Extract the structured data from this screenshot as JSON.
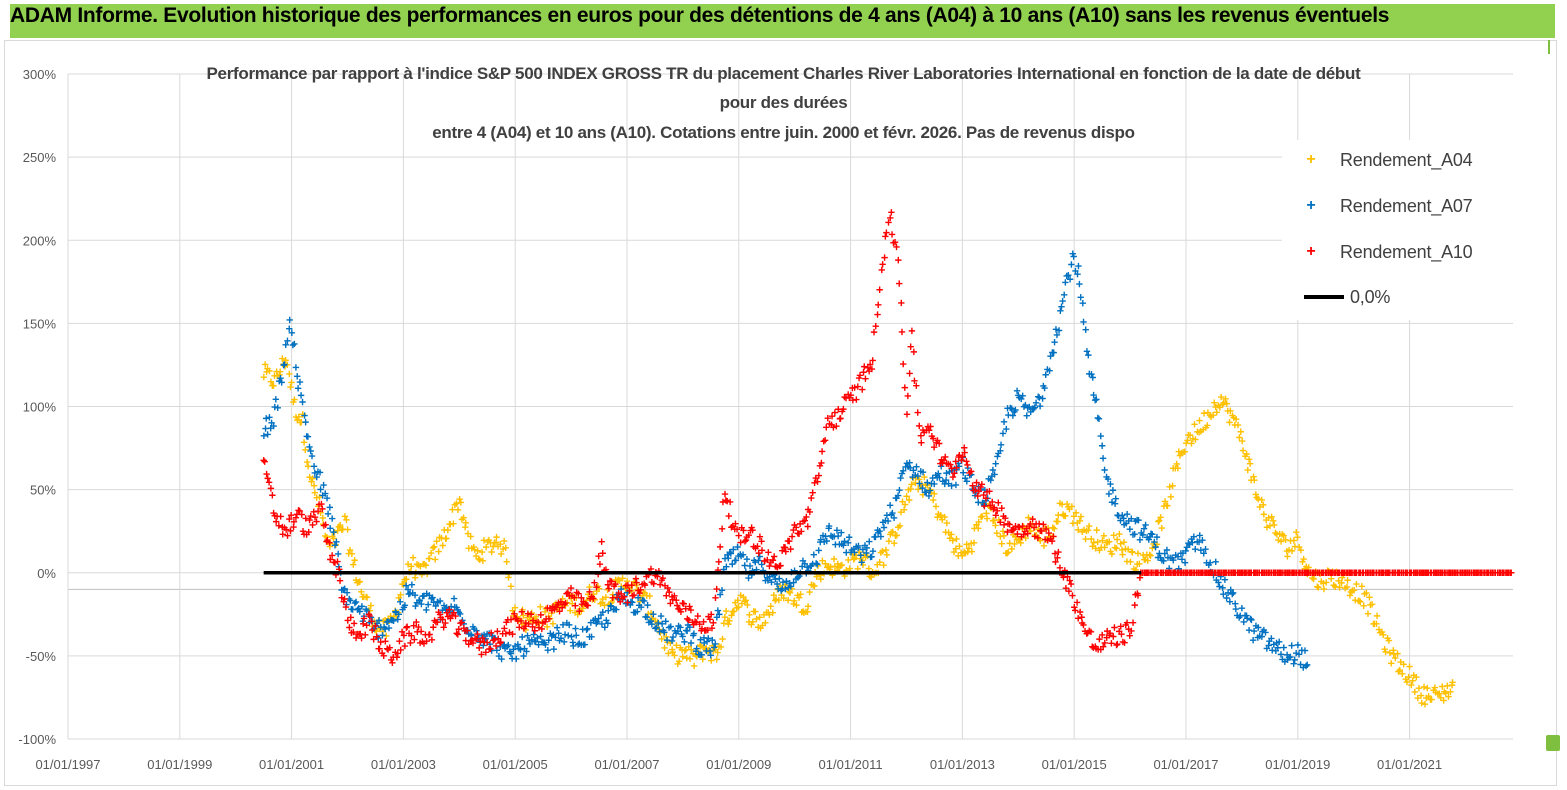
{
  "banner": {
    "text": "ADAM Informe. Evolution historique des performances en euros pour des détentions de 4 ans (A04) à 10 ans (A10) sans les revenus éventuels"
  },
  "chart_data": {
    "type": "scatter",
    "title_lines": [
      "Performance par rapport à l'indice S&P 500 INDEX GROSS TR  du placement Charles River Laboratories International en fonction de la date de début",
      "pour des durées",
      "entre 4 (A04) et 10 ans (A10). Cotations entre juin. 2000 et févr. 2026. Pas de revenus dispo"
    ],
    "x_tick_labels": [
      "01/01/1997",
      "01/01/1999",
      "01/01/2001",
      "01/01/2003",
      "01/01/2005",
      "01/01/2007",
      "01/01/2009",
      "01/01/2011",
      "01/01/2013",
      "01/01/2015",
      "01/01/2017",
      "01/01/2019",
      "01/01/2021"
    ],
    "x_range": [
      1997.0,
      2022.85
    ],
    "y_tick_labels": [
      "300%",
      "250%",
      "200%",
      "150%",
      "100%",
      "50%",
      "0%",
      "-50%",
      "-100%"
    ],
    "y_range": [
      -1.0,
      3.0
    ],
    "y_gridlines": true,
    "legend_position": "top-right",
    "series": [
      {
        "name": "Rendement_A04",
        "color": "#ffc000",
        "marker": "+",
        "anchors": [
          [
            2000.5,
            1.2
          ],
          [
            2000.7,
            1.15
          ],
          [
            2000.9,
            1.3
          ],
          [
            2001.05,
            1.0
          ],
          [
            2001.2,
            0.9
          ],
          [
            2001.35,
            0.55
          ],
          [
            2001.5,
            0.4
          ],
          [
            2001.65,
            0.15
          ],
          [
            2001.8,
            0.2
          ],
          [
            2001.95,
            0.3
          ],
          [
            2002.1,
            0.05
          ],
          [
            2002.3,
            -0.15
          ],
          [
            2002.5,
            -0.3
          ],
          [
            2002.7,
            -0.35
          ],
          [
            2002.85,
            -0.25
          ],
          [
            2003.0,
            -0.05
          ],
          [
            2003.15,
            0.05
          ],
          [
            2003.3,
            -0.02
          ],
          [
            2003.5,
            0.08
          ],
          [
            2003.7,
            0.2
          ],
          [
            2003.9,
            0.35
          ],
          [
            2004.0,
            0.45
          ],
          [
            2004.15,
            0.2
          ],
          [
            2004.3,
            0.1
          ],
          [
            2004.5,
            0.15
          ],
          [
            2004.7,
            0.2
          ],
          [
            2004.85,
            0.1
          ],
          [
            2004.95,
            -0.2
          ],
          [
            2005.2,
            -0.3
          ],
          [
            2005.4,
            -0.25
          ],
          [
            2005.6,
            -0.28
          ],
          [
            2005.8,
            -0.2
          ],
          [
            2006.0,
            -0.18
          ],
          [
            2006.2,
            -0.2
          ],
          [
            2006.4,
            -0.1
          ],
          [
            2006.6,
            -0.15
          ],
          [
            2006.8,
            -0.1
          ],
          [
            2007.0,
            -0.05
          ],
          [
            2007.2,
            -0.12
          ],
          [
            2007.4,
            -0.2
          ],
          [
            2007.6,
            -0.35
          ],
          [
            2007.8,
            -0.5
          ],
          [
            2008.0,
            -0.48
          ],
          [
            2008.2,
            -0.52
          ],
          [
            2008.4,
            -0.45
          ],
          [
            2008.6,
            -0.5
          ],
          [
            2008.75,
            -0.3
          ],
          [
            2009.0,
            -0.15
          ],
          [
            2009.2,
            -0.25
          ],
          [
            2009.4,
            -0.3
          ],
          [
            2009.6,
            -0.2
          ],
          [
            2009.8,
            -0.1
          ],
          [
            2010.0,
            -0.15
          ],
          [
            2010.2,
            -0.2
          ],
          [
            2010.4,
            0.0
          ],
          [
            2010.6,
            0.05
          ],
          [
            2010.8,
            0.02
          ],
          [
            2011.0,
            0.05
          ],
          [
            2011.2,
            0.1
          ],
          [
            2011.4,
            0.0
          ],
          [
            2011.6,
            0.1
          ],
          [
            2011.8,
            0.25
          ],
          [
            2012.0,
            0.45
          ],
          [
            2012.2,
            0.55
          ],
          [
            2012.4,
            0.5
          ],
          [
            2012.6,
            0.35
          ],
          [
            2012.8,
            0.2
          ],
          [
            2013.0,
            0.1
          ],
          [
            2013.2,
            0.2
          ],
          [
            2013.4,
            0.4
          ],
          [
            2013.6,
            0.3
          ],
          [
            2013.8,
            0.15
          ],
          [
            2014.0,
            0.2
          ],
          [
            2014.2,
            0.3
          ],
          [
            2014.4,
            0.2
          ],
          [
            2014.6,
            0.25
          ],
          [
            2014.8,
            0.4
          ],
          [
            2015.0,
            0.35
          ],
          [
            2015.2,
            0.25
          ],
          [
            2015.4,
            0.2
          ],
          [
            2015.6,
            0.15
          ],
          [
            2015.8,
            0.2
          ],
          [
            2016.0,
            0.1
          ],
          [
            2016.2,
            0.05
          ],
          [
            2016.4,
            0.15
          ],
          [
            2016.6,
            0.35
          ],
          [
            2016.8,
            0.6
          ],
          [
            2017.0,
            0.8
          ],
          [
            2017.2,
            0.85
          ],
          [
            2017.4,
            0.95
          ],
          [
            2017.6,
            1.05
          ],
          [
            2017.8,
            0.95
          ],
          [
            2018.0,
            0.8
          ],
          [
            2018.2,
            0.55
          ],
          [
            2018.4,
            0.35
          ],
          [
            2018.6,
            0.25
          ],
          [
            2018.8,
            0.15
          ],
          [
            2019.0,
            0.2
          ],
          [
            2019.2,
            0.0
          ],
          [
            2019.4,
            -0.05
          ],
          [
            2019.6,
            -0.02
          ],
          [
            2019.8,
            -0.05
          ],
          [
            2020.0,
            -0.1
          ],
          [
            2020.2,
            -0.15
          ],
          [
            2020.4,
            -0.3
          ],
          [
            2020.6,
            -0.45
          ],
          [
            2020.8,
            -0.55
          ],
          [
            2021.0,
            -0.62
          ],
          [
            2021.2,
            -0.72
          ],
          [
            2021.4,
            -0.75
          ],
          [
            2021.6,
            -0.72
          ],
          [
            2021.8,
            -0.68
          ]
        ]
      },
      {
        "name": "Rendement_A07",
        "color": "#0070c0",
        "marker": "+",
        "anchors": [
          [
            2000.5,
            0.85
          ],
          [
            2000.7,
            0.95
          ],
          [
            2000.9,
            1.35
          ],
          [
            2001.0,
            1.5
          ],
          [
            2001.1,
            1.2
          ],
          [
            2001.25,
            0.9
          ],
          [
            2001.4,
            0.65
          ],
          [
            2001.6,
            0.45
          ],
          [
            2001.75,
            0.25
          ],
          [
            2001.9,
            -0.1
          ],
          [
            2002.1,
            -0.2
          ],
          [
            2002.3,
            -0.25
          ],
          [
            2002.5,
            -0.35
          ],
          [
            2002.7,
            -0.3
          ],
          [
            2002.9,
            -0.25
          ],
          [
            2003.1,
            -0.1
          ],
          [
            2003.3,
            -0.2
          ],
          [
            2003.5,
            -0.15
          ],
          [
            2003.7,
            -0.25
          ],
          [
            2003.9,
            -0.2
          ],
          [
            2004.1,
            -0.3
          ],
          [
            2004.3,
            -0.35
          ],
          [
            2004.5,
            -0.4
          ],
          [
            2004.7,
            -0.45
          ],
          [
            2004.9,
            -0.5
          ],
          [
            2005.1,
            -0.45
          ],
          [
            2005.3,
            -0.42
          ],
          [
            2005.5,
            -0.45
          ],
          [
            2005.7,
            -0.4
          ],
          [
            2005.9,
            -0.35
          ],
          [
            2006.1,
            -0.4
          ],
          [
            2006.3,
            -0.38
          ],
          [
            2006.5,
            -0.3
          ],
          [
            2006.7,
            -0.25
          ],
          [
            2006.9,
            -0.15
          ],
          [
            2007.1,
            -0.18
          ],
          [
            2007.3,
            -0.2
          ],
          [
            2007.5,
            -0.28
          ],
          [
            2007.7,
            -0.35
          ],
          [
            2007.9,
            -0.38
          ],
          [
            2008.1,
            -0.35
          ],
          [
            2008.3,
            -0.45
          ],
          [
            2008.55,
            -0.45
          ],
          [
            2008.75,
            0.05
          ],
          [
            2009.0,
            0.1
          ],
          [
            2009.2,
            0.0
          ],
          [
            2009.4,
            0.05
          ],
          [
            2009.6,
            -0.05
          ],
          [
            2009.8,
            -0.1
          ],
          [
            2010.0,
            0.0
          ],
          [
            2010.2,
            0.05
          ],
          [
            2010.4,
            0.1
          ],
          [
            2010.6,
            0.25
          ],
          [
            2010.8,
            0.2
          ],
          [
            2011.0,
            0.15
          ],
          [
            2011.2,
            0.1
          ],
          [
            2011.4,
            0.15
          ],
          [
            2011.6,
            0.3
          ],
          [
            2011.8,
            0.4
          ],
          [
            2012.0,
            0.65
          ],
          [
            2012.2,
            0.6
          ],
          [
            2012.4,
            0.5
          ],
          [
            2012.6,
            0.6
          ],
          [
            2012.8,
            0.55
          ],
          [
            2013.0,
            0.65
          ],
          [
            2013.2,
            0.5
          ],
          [
            2013.4,
            0.45
          ],
          [
            2013.6,
            0.6
          ],
          [
            2013.8,
            0.95
          ],
          [
            2014.0,
            1.05
          ],
          [
            2014.2,
            0.95
          ],
          [
            2014.4,
            1.05
          ],
          [
            2014.6,
            1.35
          ],
          [
            2014.75,
            1.55
          ],
          [
            2014.9,
            1.8
          ],
          [
            2015.0,
            1.9
          ],
          [
            2015.1,
            1.75
          ],
          [
            2015.25,
            1.25
          ],
          [
            2015.4,
            1.0
          ],
          [
            2015.55,
            0.6
          ],
          [
            2015.7,
            0.45
          ],
          [
            2015.85,
            0.35
          ],
          [
            2016.0,
            0.3
          ],
          [
            2016.2,
            0.25
          ],
          [
            2016.4,
            0.2
          ],
          [
            2016.6,
            0.1
          ],
          [
            2016.8,
            0.05
          ],
          [
            2017.0,
            0.1
          ],
          [
            2017.2,
            0.2
          ],
          [
            2017.4,
            0.1
          ],
          [
            2017.6,
            -0.05
          ],
          [
            2017.8,
            -0.15
          ],
          [
            2018.0,
            -0.25
          ],
          [
            2018.2,
            -0.35
          ],
          [
            2018.4,
            -0.4
          ],
          [
            2018.6,
            -0.45
          ],
          [
            2018.8,
            -0.5
          ],
          [
            2019.0,
            -0.48
          ],
          [
            2019.2,
            -0.55
          ]
        ]
      },
      {
        "name": "Rendement_A10",
        "color": "#ff0000",
        "marker": "+",
        "anchors": [
          [
            2000.5,
            0.65
          ],
          [
            2000.7,
            0.35
          ],
          [
            2000.9,
            0.25
          ],
          [
            2001.1,
            0.35
          ],
          [
            2001.3,
            0.25
          ],
          [
            2001.5,
            0.4
          ],
          [
            2001.7,
            0.1
          ],
          [
            2001.85,
            0.0
          ],
          [
            2002.0,
            -0.3
          ],
          [
            2002.2,
            -0.35
          ],
          [
            2002.4,
            -0.3
          ],
          [
            2002.6,
            -0.45
          ],
          [
            2002.8,
            -0.5
          ],
          [
            2003.0,
            -0.4
          ],
          [
            2003.2,
            -0.35
          ],
          [
            2003.4,
            -0.4
          ],
          [
            2003.6,
            -0.3
          ],
          [
            2003.8,
            -0.25
          ],
          [
            2004.0,
            -0.35
          ],
          [
            2004.2,
            -0.38
          ],
          [
            2004.4,
            -0.45
          ],
          [
            2004.6,
            -0.4
          ],
          [
            2004.8,
            -0.35
          ],
          [
            2005.0,
            -0.3
          ],
          [
            2005.2,
            -0.28
          ],
          [
            2005.4,
            -0.3
          ],
          [
            2005.6,
            -0.25
          ],
          [
            2005.8,
            -0.2
          ],
          [
            2006.0,
            -0.15
          ],
          [
            2006.2,
            -0.2
          ],
          [
            2006.4,
            -0.15
          ],
          [
            2006.55,
            0.15
          ],
          [
            2006.7,
            -0.1
          ],
          [
            2006.9,
            -0.15
          ],
          [
            2007.1,
            -0.1
          ],
          [
            2007.3,
            -0.05
          ],
          [
            2007.5,
            0.0
          ],
          [
            2007.7,
            -0.1
          ],
          [
            2007.9,
            -0.2
          ],
          [
            2008.1,
            -0.25
          ],
          [
            2008.3,
            -0.3
          ],
          [
            2008.55,
            -0.3
          ],
          [
            2008.75,
            0.5
          ],
          [
            2008.9,
            0.3
          ],
          [
            2009.0,
            0.2
          ],
          [
            2009.2,
            0.25
          ],
          [
            2009.4,
            0.15
          ],
          [
            2009.6,
            0.05
          ],
          [
            2009.8,
            0.1
          ],
          [
            2010.0,
            0.25
          ],
          [
            2010.2,
            0.3
          ],
          [
            2010.4,
            0.55
          ],
          [
            2010.6,
            0.9
          ],
          [
            2010.8,
            0.95
          ],
          [
            2011.0,
            1.05
          ],
          [
            2011.2,
            1.15
          ],
          [
            2011.4,
            1.3
          ],
          [
            2011.55,
            1.85
          ],
          [
            2011.7,
            2.15
          ],
          [
            2011.85,
            1.9
          ],
          [
            2012.0,
            1.0
          ],
          [
            2012.1,
            1.4
          ],
          [
            2012.25,
            0.8
          ],
          [
            2012.4,
            0.9
          ],
          [
            2012.6,
            0.7
          ],
          [
            2012.8,
            0.6
          ],
          [
            2013.0,
            0.75
          ],
          [
            2013.2,
            0.55
          ],
          [
            2013.4,
            0.45
          ],
          [
            2013.6,
            0.4
          ],
          [
            2013.8,
            0.3
          ],
          [
            2014.0,
            0.25
          ],
          [
            2014.2,
            0.3
          ],
          [
            2014.4,
            0.25
          ],
          [
            2014.6,
            0.2
          ],
          [
            2014.8,
            0.0
          ],
          [
            2015.0,
            -0.15
          ],
          [
            2015.2,
            -0.35
          ],
          [
            2015.4,
            -0.45
          ],
          [
            2015.6,
            -0.4
          ],
          [
            2015.8,
            -0.38
          ],
          [
            2016.0,
            -0.35
          ],
          [
            2016.2,
            0.0
          ],
          [
            2022.85,
            0.0
          ]
        ]
      }
    ],
    "zero_line": {
      "name": "0,0%",
      "color": "#000000",
      "x": [
        2000.5,
        2016.2
      ],
      "y": 0.0
    }
  }
}
